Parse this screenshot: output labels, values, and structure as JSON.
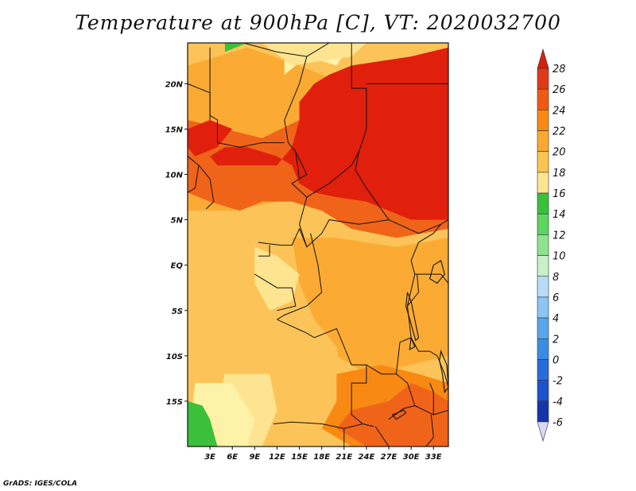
{
  "title": "Temperature at 900hPa [C], VT: 2020032700",
  "credit": "GrADS: IGES/COLA",
  "map": {
    "lon_range": [
      0,
      35
    ],
    "lat_range": [
      -20,
      24.5
    ],
    "lon_ticks": [
      {
        "value": 3,
        "label": "3E"
      },
      {
        "value": 6,
        "label": "6E"
      },
      {
        "value": 9,
        "label": "9E"
      },
      {
        "value": 12,
        "label": "12E"
      },
      {
        "value": 15,
        "label": "15E"
      },
      {
        "value": 18,
        "label": "18E"
      },
      {
        "value": 21,
        "label": "21E"
      },
      {
        "value": 24,
        "label": "24E"
      },
      {
        "value": 27,
        "label": "27E"
      },
      {
        "value": 30,
        "label": "30E"
      },
      {
        "value": 33,
        "label": "33E"
      }
    ],
    "lat_ticks": [
      {
        "value": 20,
        "label": "20N"
      },
      {
        "value": 15,
        "label": "15N"
      },
      {
        "value": 10,
        "label": "10N"
      },
      {
        "value": 5,
        "label": "5N"
      },
      {
        "value": 0,
        "label": "EQ"
      },
      {
        "value": -5,
        "label": "5S"
      },
      {
        "value": -10,
        "label": "10S"
      },
      {
        "value": -15,
        "label": "15S"
      }
    ]
  },
  "colorbar": {
    "levels": [
      28,
      26,
      24,
      22,
      20,
      18,
      16,
      14,
      12,
      10,
      8,
      6,
      4,
      2,
      0,
      -2,
      -4,
      -6
    ],
    "colors": [
      "#e03a1a",
      "#f05a10",
      "#f88a14",
      "#fca830",
      "#fdc451",
      "#fde490",
      "#3bc03b",
      "#5cd65c",
      "#8ee38e",
      "#c8f0c8",
      "#b8dcf8",
      "#8cc4f4",
      "#5aa6ec",
      "#3c8ae4",
      "#2a6cdc",
      "#1e52cc",
      "#1436a8",
      "#0c1a7a"
    ],
    "top_color": "#d8200e",
    "bottom_color": "#d8d8f8"
  },
  "field": {
    "fill_colors": {
      "t16": "#3bc03b",
      "t18": "#fdf2a8",
      "t20": "#fde490",
      "t22": "#fcc458",
      "t24": "#fbab34",
      "t25": "#f88a14",
      "t26": "#f0641a",
      "t28": "#e0200c"
    }
  }
}
